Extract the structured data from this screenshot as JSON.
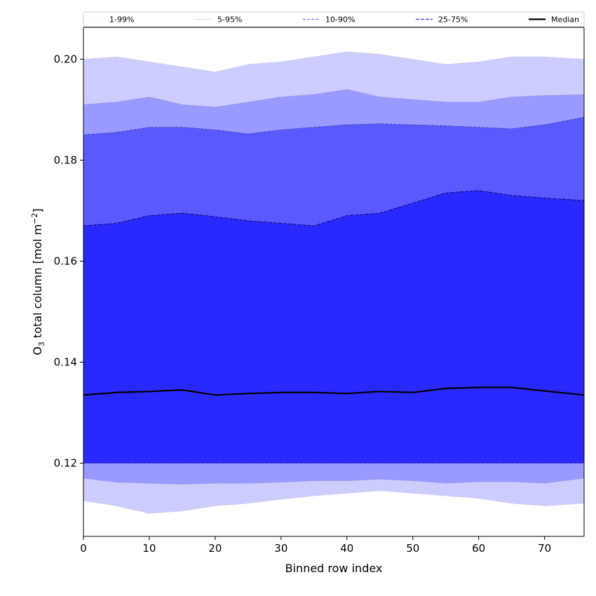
{
  "chart_data": {
    "type": "area",
    "title": "",
    "xlabel": "Binned row index",
    "ylabel_main": "O",
    "ylabel_sub": "3",
    "ylabel_rest": " total column [mol m",
    "ylabel_sup": "−2",
    "ylabel_end": "]",
    "xlim": [
      0,
      76
    ],
    "ylim": [
      0.1055,
      0.2063
    ],
    "xticks": [
      0,
      10,
      20,
      30,
      40,
      50,
      60,
      70
    ],
    "yticks": [
      0.12,
      0.14,
      0.16,
      0.18,
      0.2
    ],
    "ytick_labels": [
      "0.12",
      "0.14",
      "0.16",
      "0.18",
      "0.20"
    ],
    "grid": false,
    "legend_position": "top",
    "legend": [
      "1-99%",
      "5-95%",
      "10-90%",
      "25-75%",
      "Median"
    ],
    "colors": {
      "band_1_99": "#ccccff",
      "band_5_95": "#9999ff",
      "band_10_90": "#5959ff",
      "band_25_75": "#2929ff",
      "median": "#000000"
    },
    "x": [
      0,
      5,
      10,
      15,
      20,
      25,
      30,
      35,
      40,
      45,
      50,
      55,
      60,
      65,
      70,
      76
    ],
    "series": [
      {
        "name": "1-99%",
        "lower": [
          0.1125,
          0.1115,
          0.11,
          0.1105,
          0.1115,
          0.112,
          0.1128,
          0.1135,
          0.114,
          0.1145,
          0.114,
          0.1135,
          0.113,
          0.112,
          0.1115,
          0.112
        ],
        "upper": [
          0.2,
          0.2005,
          0.1995,
          0.1985,
          0.1975,
          0.199,
          0.1995,
          0.2005,
          0.2015,
          0.201,
          0.2,
          0.199,
          0.1995,
          0.2005,
          0.2005,
          0.2
        ]
      },
      {
        "name": "5-95%",
        "lower": [
          0.117,
          0.1162,
          0.116,
          0.1158,
          0.116,
          0.116,
          0.1162,
          0.1165,
          0.1165,
          0.1168,
          0.1165,
          0.116,
          0.1163,
          0.1163,
          0.116,
          0.117
        ],
        "upper": [
          0.191,
          0.1915,
          0.1925,
          0.191,
          0.1905,
          0.1915,
          0.1925,
          0.193,
          0.194,
          0.1925,
          0.192,
          0.1915,
          0.1915,
          0.1925,
          0.1928,
          0.193
        ]
      },
      {
        "name": "10-90%",
        "lower": [
          0.1225,
          0.1215,
          0.1217,
          0.1215,
          0.1215,
          0.1213,
          0.1213,
          0.121,
          0.1218,
          0.122,
          0.122,
          0.122,
          0.1217,
          0.1213,
          0.121,
          0.1215
        ],
        "upper": [
          0.185,
          0.1855,
          0.1865,
          0.1865,
          0.186,
          0.1852,
          0.186,
          0.1865,
          0.187,
          0.1872,
          0.187,
          0.1868,
          0.1865,
          0.1862,
          0.187,
          0.1885
        ]
      },
      {
        "name": "25-75%",
        "lower": [
          0.12,
          0.12,
          0.12,
          0.12,
          0.12,
          0.12,
          0.12,
          0.12,
          0.12,
          0.12,
          0.12,
          0.12,
          0.12,
          0.12,
          0.12,
          0.12
        ],
        "upper": [
          0.167,
          0.1675,
          0.169,
          0.1695,
          0.1688,
          0.168,
          0.1675,
          0.167,
          0.169,
          0.1695,
          0.1715,
          0.1735,
          0.174,
          0.173,
          0.1725,
          0.172
        ]
      },
      {
        "name": "Median",
        "values": [
          0.1335,
          0.134,
          0.1342,
          0.1345,
          0.1335,
          0.1338,
          0.134,
          0.134,
          0.1338,
          0.1342,
          0.134,
          0.1348,
          0.135,
          0.135,
          0.1343,
          0.1335
        ]
      }
    ]
  }
}
